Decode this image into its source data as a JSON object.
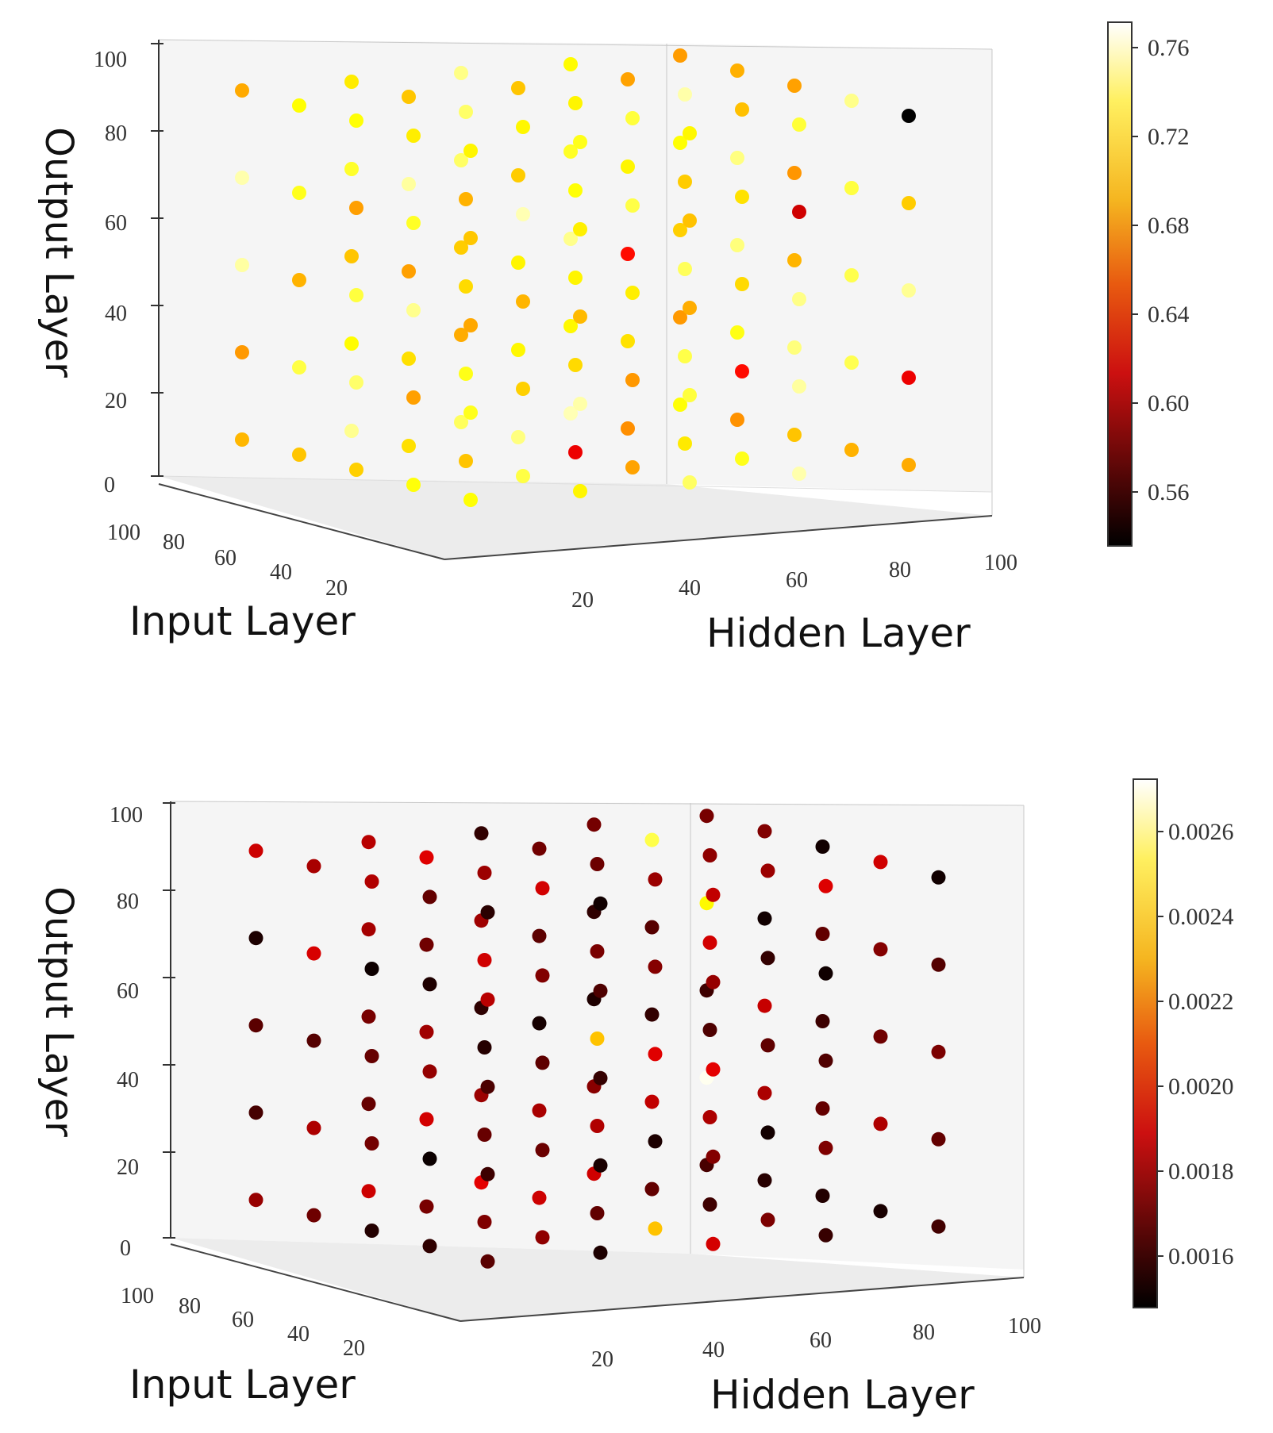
{
  "chart_data": [
    {
      "type": "scatter",
      "projection": "3d",
      "xlabel": "Hidden Layer",
      "ylabel": "Input Layer",
      "zlabel": "Output Layer",
      "xlim": [
        0,
        100
      ],
      "ylim": [
        0,
        100
      ],
      "zlim": [
        0,
        100
      ],
      "xticks": [
        "20",
        "40",
        "60",
        "80",
        "100"
      ],
      "yticks": [
        "100",
        "80",
        "60",
        "40",
        "20"
      ],
      "zticks": [
        "0",
        "20",
        "40",
        "60",
        "80",
        "100"
      ],
      "colorbar": {
        "colormap": "hot",
        "min": 0.54,
        "max": 0.77,
        "ticks": [
          "0.76",
          "0.72",
          "0.68",
          "0.64",
          "0.60",
          "0.56"
        ]
      },
      "grid_values": [
        10,
        30,
        50,
        70,
        90
      ],
      "color_summary": {
        "mean": 0.71,
        "low_points": [
          [
            90,
            10,
            90,
            0.54
          ],
          [
            70,
            10,
            70,
            0.61
          ],
          [
            90,
            10,
            30,
            0.62
          ],
          [
            70,
            30,
            30,
            0.63
          ],
          [
            50,
            50,
            10,
            0.62
          ],
          [
            70,
            70,
            50,
            0.63
          ]
        ]
      },
      "color_value_range": [
        0.54,
        0.77
      ]
    },
    {
      "type": "scatter",
      "projection": "3d",
      "xlabel": "Hidden Layer",
      "ylabel": "Input Layer",
      "zlabel": "Output Layer",
      "xlim": [
        0,
        100
      ],
      "ylim": [
        0,
        100
      ],
      "zlim": [
        0,
        100
      ],
      "xticks": [
        "20",
        "40",
        "60",
        "80",
        "100"
      ],
      "yticks": [
        "100",
        "80",
        "60",
        "40",
        "20"
      ],
      "zticks": [
        "0",
        "20",
        "40",
        "60",
        "80",
        "100"
      ],
      "colorbar": {
        "colormap": "hot",
        "min": 0.00148,
        "max": 0.00272,
        "ticks": [
          "0.0026",
          "0.0024",
          "0.0022",
          "0.0020",
          "0.0018",
          "0.0016"
        ]
      },
      "grid_values": [
        10,
        30,
        50,
        70,
        90
      ],
      "color_summary": {
        "mean": 0.0017,
        "high_points": [
          [
            90,
            90,
            70,
            0.0024
          ],
          [
            90,
            90,
            30,
            0.0027
          ],
          [
            70,
            70,
            90,
            0.0025
          ],
          [
            50,
            50,
            50,
            0.0023
          ],
          [
            50,
            30,
            10,
            0.0023
          ]
        ]
      },
      "color_value_range": [
        0.00148,
        0.00272
      ]
    }
  ]
}
